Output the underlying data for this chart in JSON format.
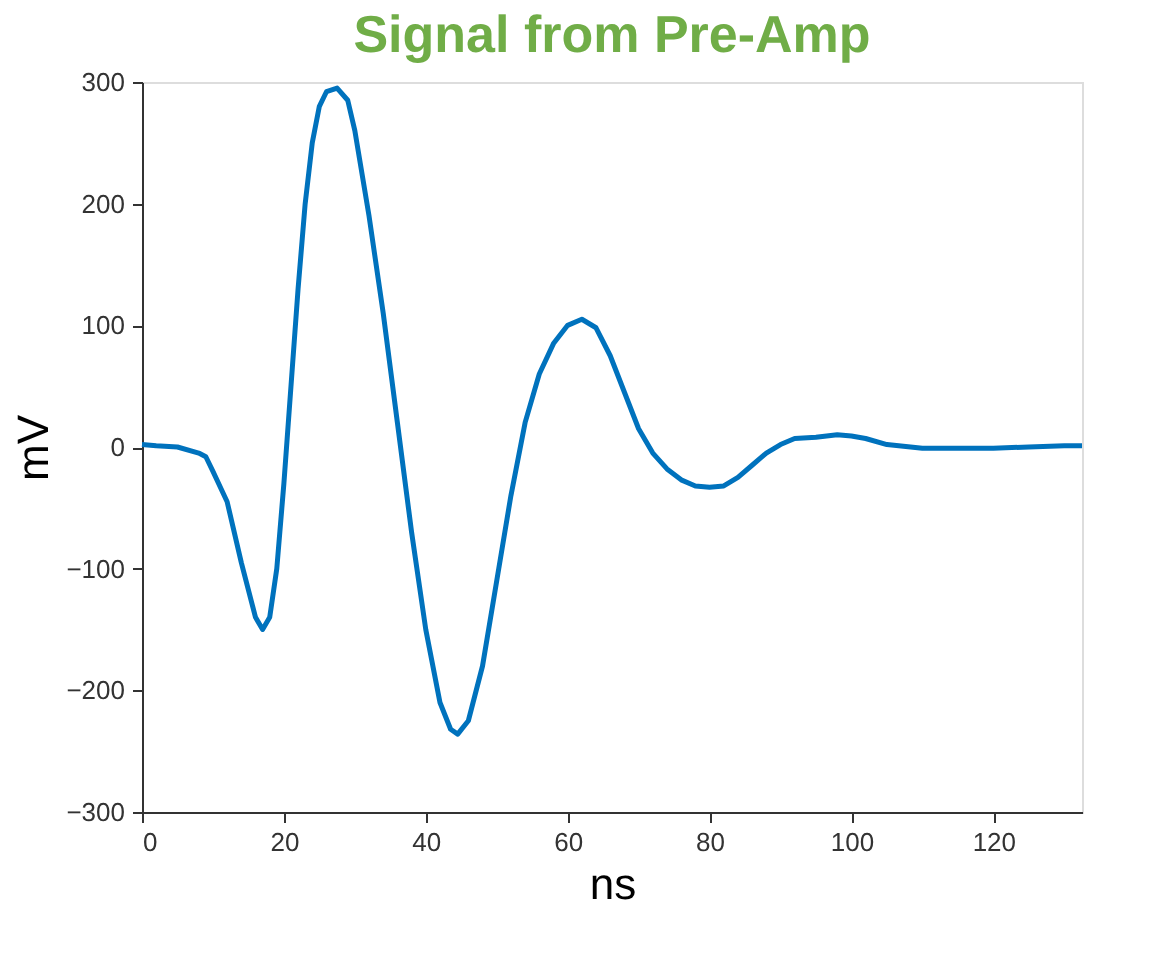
{
  "chart_data": {
    "type": "line",
    "title": "Signal from Pre-Amp",
    "xlabel": "ns",
    "ylabel": "mV",
    "x": [
      0,
      2,
      5,
      8,
      9,
      10,
      12,
      14,
      16,
      17,
      18,
      19,
      20,
      21,
      22,
      23,
      24,
      25,
      26,
      27.5,
      29,
      30,
      32,
      34,
      36,
      38,
      40,
      42,
      43.5,
      44.5,
      46,
      48,
      50,
      52,
      54,
      56,
      58,
      60,
      62,
      64,
      66,
      68,
      70,
      72,
      74,
      76,
      78,
      80,
      82,
      84,
      86,
      88,
      90,
      92,
      95,
      98,
      100,
      102,
      105,
      110,
      115,
      120,
      125,
      130,
      132.5
    ],
    "series": [
      {
        "color": "#0072bd",
        "values": [
          2,
          1,
          0,
          -5,
          -8,
          -20,
          -45,
          -95,
          -140,
          -150,
          -140,
          -100,
          -30,
          50,
          130,
          200,
          250,
          280,
          292,
          295,
          285,
          260,
          190,
          110,
          20,
          -70,
          -150,
          -210,
          -232,
          -236,
          -225,
          -180,
          -110,
          -40,
          20,
          60,
          85,
          100,
          105,
          98,
          75,
          45,
          15,
          -5,
          -18,
          -27,
          -32,
          -33,
          -32,
          -25,
          -15,
          -5,
          2,
          7,
          8,
          10,
          9,
          7,
          2,
          -1,
          -1,
          -1,
          0,
          1,
          1
        ]
      }
    ],
    "xlim": [
      0,
      132.5
    ],
    "xticks": [
      0,
      20,
      40,
      60,
      80,
      100,
      120
    ],
    "ylim": [
      -300,
      300
    ],
    "yticks": [
      -300,
      -200,
      -100,
      0,
      100,
      200,
      300
    ],
    "grid": false,
    "marker": "none",
    "line_style": "solid"
  }
}
